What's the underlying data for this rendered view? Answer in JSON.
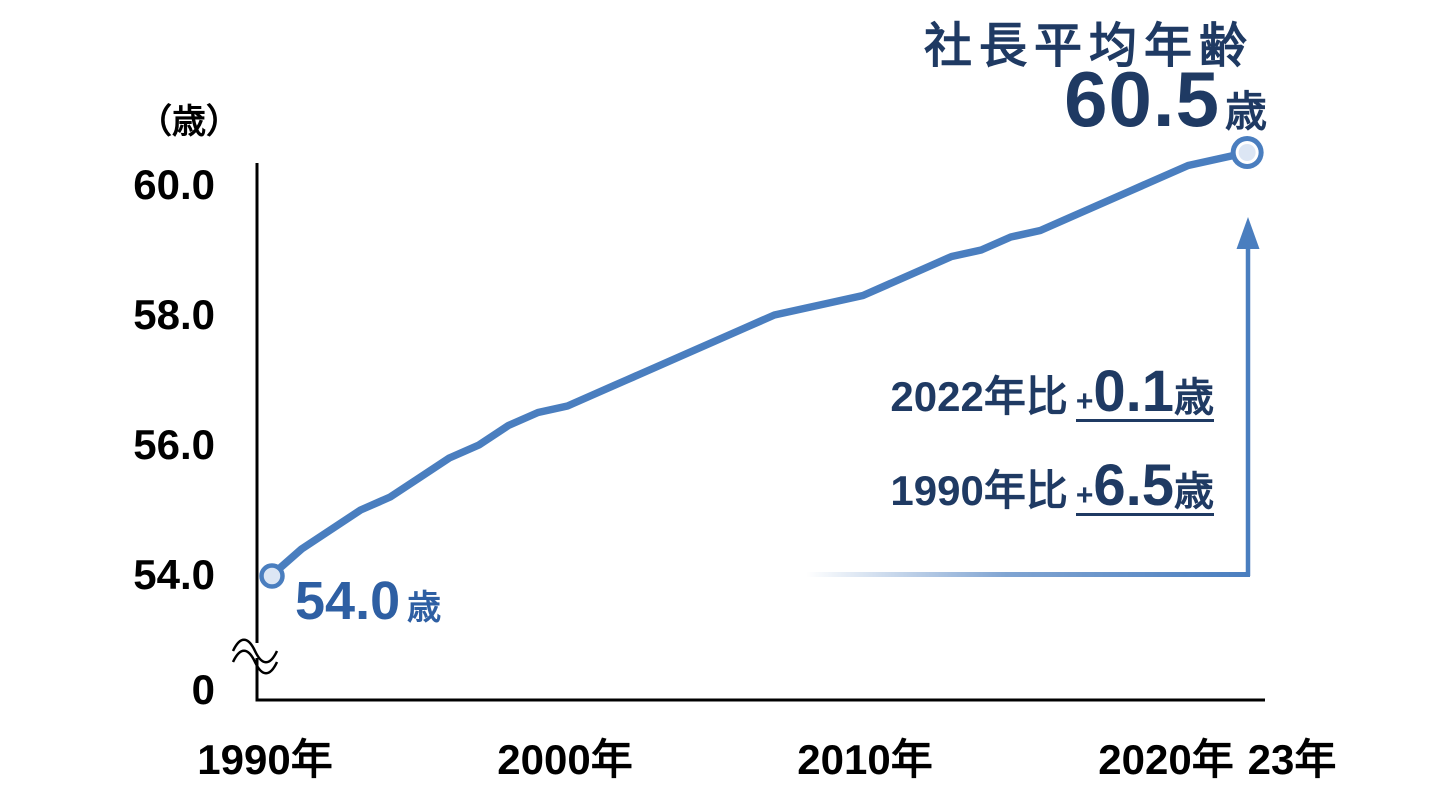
{
  "page": {
    "background": "#ffffff"
  },
  "title": {
    "text": "社長平均年齢",
    "value": "60.5",
    "unit": "歳"
  },
  "y_axis": {
    "unit_label": "（歳）",
    "ticks": [
      "60.0",
      "58.0",
      "56.0",
      "54.0",
      "0"
    ]
  },
  "x_axis": {
    "ticks": [
      "1990年",
      "2000年",
      "2010年",
      "2020年",
      "23年"
    ]
  },
  "start_label": {
    "value": "54.0",
    "unit": "歳"
  },
  "annotations": [
    {
      "prefix": "2022年比",
      "plus": "+",
      "value": "0.1",
      "unit": "歳"
    },
    {
      "prefix": "1990年比",
      "plus": "+",
      "value": "6.5",
      "unit": "歳"
    }
  ],
  "colors": {
    "line": "#4a7ebf",
    "navy_text": "#1f3a63",
    "start_label_blue": "#2e5fa3",
    "marker_fill": "#dce6f4",
    "axis": "#000000"
  },
  "chart_data": {
    "type": "line",
    "title": "社長平均年齢",
    "ylabel": "（歳）",
    "unit": "歳",
    "x": [
      1990,
      1991,
      1992,
      1993,
      1994,
      1995,
      1996,
      1997,
      1998,
      1999,
      2000,
      2001,
      2002,
      2003,
      2004,
      2005,
      2006,
      2007,
      2008,
      2009,
      2010,
      2011,
      2012,
      2013,
      2014,
      2015,
      2016,
      2017,
      2018,
      2019,
      2020,
      2021,
      2022,
      2023
    ],
    "values": [
      54.0,
      54.4,
      54.7,
      55.0,
      55.2,
      55.5,
      55.8,
      56.0,
      56.3,
      56.5,
      56.6,
      56.8,
      57.0,
      57.2,
      57.4,
      57.6,
      57.8,
      58.0,
      58.1,
      58.2,
      58.3,
      58.5,
      58.7,
      58.9,
      59.0,
      59.2,
      59.3,
      59.5,
      59.7,
      59.9,
      60.1,
      60.3,
      60.4,
      60.5
    ],
    "yticks": [
      60.0,
      58.0,
      56.0,
      54.0,
      0
    ],
    "xtick_labels": [
      "1990年",
      "2000年",
      "2010年",
      "2020年",
      "23年"
    ],
    "axis_break": true,
    "grid": false,
    "legend": "none",
    "highlights": {
      "start": {
        "year": 1990,
        "value": 54.0,
        "label": "54.0歳"
      },
      "end": {
        "year": 2023,
        "value": 60.5,
        "label": "60.5歳"
      },
      "vs_2022": "+0.1歳",
      "vs_1990": "+6.5歳"
    }
  }
}
